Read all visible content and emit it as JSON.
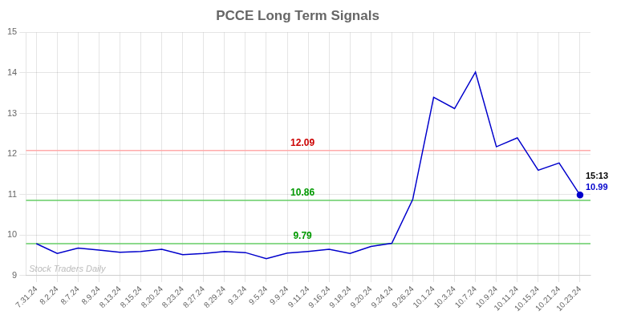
{
  "chart_data": {
    "type": "line",
    "title": "PCCE Long Term Signals",
    "categories": [
      "7.31.24",
      "8.2.24",
      "8.7.24",
      "8.9.24",
      "8.13.24",
      "8.15.24",
      "8.20.24",
      "8.23.24",
      "8.27.24",
      "8.29.24",
      "9.3.24",
      "9.5.24",
      "9.9.24",
      "9.11.24",
      "9.16.24",
      "9.18.24",
      "9.20.24",
      "9.24.24",
      "9.26.24",
      "10.1.24",
      "10.3.24",
      "10.7.24",
      "10.9.24",
      "10.11.24",
      "10.15.24",
      "10.21.24",
      "10.23.24"
    ],
    "values": [
      9.79,
      9.55,
      9.68,
      9.63,
      9.58,
      9.6,
      9.65,
      9.52,
      9.55,
      9.6,
      9.57,
      9.42,
      9.56,
      9.6,
      9.65,
      9.55,
      9.72,
      9.8,
      10.88,
      13.4,
      13.12,
      14.02,
      12.18,
      12.4,
      11.6,
      11.78,
      10.99
    ],
    "color": "#0000cc",
    "reference_lines": [
      {
        "value": 12.09,
        "label": "12.09",
        "color": "#ffaaaa",
        "label_color": "#cc0000"
      },
      {
        "value": 10.86,
        "label": "10.86",
        "color": "#66cc66",
        "label_color": "#009900"
      },
      {
        "value": 9.79,
        "label": "9.79",
        "color": "#66cc66",
        "label_color": "#009900"
      }
    ],
    "annotations": [
      {
        "text": "15:13",
        "color": "#000000"
      },
      {
        "text": "10.99",
        "color": "#0000cc"
      }
    ],
    "watermark": {
      "text": "Stock Traders Daily",
      "color": "#bbbbbb"
    },
    "ylim": [
      9.0,
      15.0
    ],
    "yticks": [
      9,
      10,
      11,
      12,
      13,
      14,
      15
    ],
    "grid": true
  }
}
